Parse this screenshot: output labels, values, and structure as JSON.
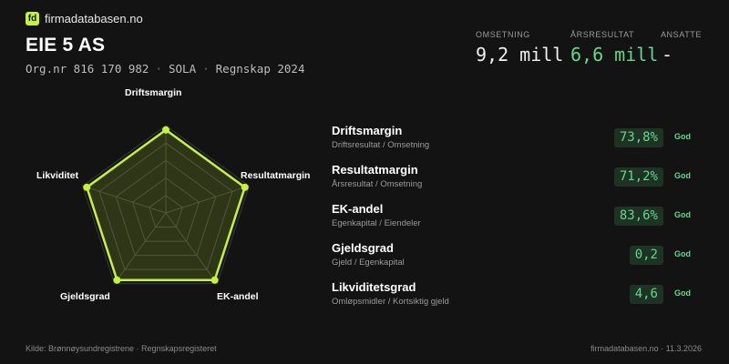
{
  "brand": {
    "logo_text": "fd",
    "name": "firmadatabasen.no"
  },
  "company": {
    "name": "EIE 5 AS",
    "orgnr": "Org.nr 816 170 982",
    "city": "SOLA",
    "period": "Regnskap 2024",
    "separator": "·"
  },
  "kpis": [
    {
      "label": "OMSETNING",
      "value": "9,2 mill"
    },
    {
      "label": "ÅRSRESULTAT",
      "value": "6,6 mill"
    },
    {
      "label": "ANSATTE",
      "value": "-"
    }
  ],
  "radar": {
    "axes": [
      "Driftsmargin",
      "Resultatmargin",
      "EK-andel",
      "Gjeldsgrad",
      "Likviditet"
    ],
    "values": [
      0.95,
      0.95,
      0.95,
      0.95,
      0.95
    ],
    "colors": {
      "line": "#c6f432",
      "fill": "#c6f432",
      "grid": "#3a3a3a"
    }
  },
  "metrics": [
    {
      "title": "Driftsmargin",
      "subtitle": "Driftsresultat / Omsetning",
      "value": "73,8%",
      "grade": "God"
    },
    {
      "title": "Resultatmargin",
      "subtitle": "Årsresultat / Omsetning",
      "value": "71,2%",
      "grade": "God"
    },
    {
      "title": "EK-andel",
      "subtitle": "Egenkapital / Eiendeler",
      "value": "83,6%",
      "grade": "God"
    },
    {
      "title": "Gjeldsgrad",
      "subtitle": "Gjeld / Egenkapital",
      "value": "0,2",
      "grade": "God"
    },
    {
      "title": "Likviditetsgrad",
      "subtitle": "Omløpsmidler / Kortsiktig gjeld",
      "value": "4,6",
      "grade": "God"
    }
  ],
  "footer": {
    "source": "Kilde: Brønnøysundregistrene · Regnskapsregisteret",
    "site_date": "firmadatabasen.no · 11.3.2026"
  }
}
